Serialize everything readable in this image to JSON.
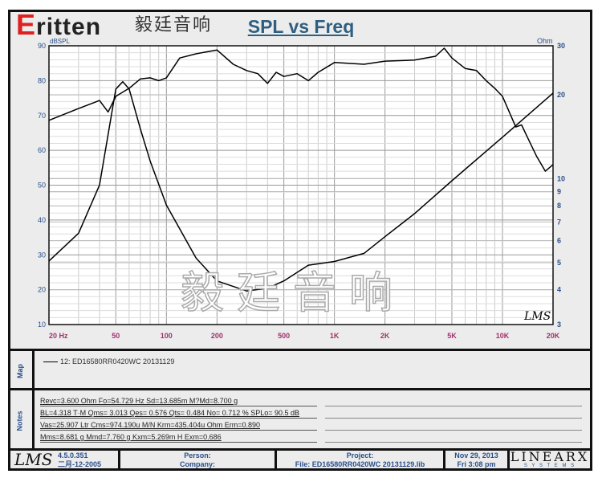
{
  "logo": {
    "text": "ritten",
    "letter": "E",
    "cn": "毅廷音响",
    "color": "#e02020"
  },
  "watermark": "毅廷音响",
  "chart_data": {
    "type": "line",
    "title": "SPL vs Freq",
    "xscale": "log",
    "xlim": [
      20,
      20000
    ],
    "x_tick_labels": [
      "20 Hz",
      "50",
      "100",
      "200",
      "500",
      "1K",
      "2K",
      "5K",
      "10K",
      "20K"
    ],
    "x_tick_values": [
      20,
      50,
      100,
      200,
      500,
      1000,
      2000,
      5000,
      10000,
      20000
    ],
    "ylabel_left": "dBSPL",
    "ylim_left": [
      10,
      90
    ],
    "y_ticks_left": [
      10,
      20,
      30,
      40,
      50,
      60,
      70,
      80,
      90
    ],
    "ylabel_right": "Ohm",
    "yscale_right": "log",
    "ylim_right": [
      3,
      30
    ],
    "y_ticks_right": [
      3,
      4,
      5,
      6,
      7,
      8,
      9,
      10,
      20,
      30
    ],
    "grid": true,
    "series": [
      {
        "axis": "left",
        "x": [
          20,
          30,
          40,
          45,
          50,
          60,
          70,
          80,
          90,
          100,
          120,
          150,
          200,
          250,
          300,
          350,
          400,
          450,
          500,
          600,
          700,
          800,
          1000,
          1500,
          2000,
          3000,
          4000,
          4500,
          5000,
          6000,
          7000,
          8000,
          9000,
          10000,
          12000,
          13000,
          14000,
          16000,
          18000,
          20000
        ],
        "values": [
          68.6,
          72,
          74.3,
          71,
          75.5,
          77.8,
          80.5,
          80.8,
          80,
          80.8,
          86.5,
          87.7,
          88.8,
          84.7,
          82.9,
          82,
          79.2,
          82.4,
          81.2,
          82,
          80,
          82.4,
          85.2,
          84.7,
          85.6,
          85.9,
          87,
          89.3,
          86.5,
          83.5,
          82.9,
          80,
          77.8,
          75.5,
          66.7,
          67.3,
          64,
          58.2,
          54,
          55.9
        ]
      },
      {
        "axis": "right",
        "x": [
          20,
          30,
          40,
          50,
          55,
          60,
          70,
          80,
          100,
          150,
          200,
          300,
          400,
          500,
          700,
          1000,
          1500,
          2000,
          3000,
          5000,
          10000,
          20000
        ],
        "values": [
          5.07,
          6.38,
          9.5,
          21,
          22.3,
          21,
          15.1,
          11.6,
          8.05,
          5.2,
          4.3,
          3.96,
          4.05,
          4.3,
          4.9,
          5.05,
          5.4,
          6.2,
          7.5,
          9.84,
          14.1,
          20.3
        ]
      }
    ],
    "annotation": "LMS"
  },
  "map": {
    "label": "Map",
    "legend": "12: ED16580RR0420WC    20131129"
  },
  "notes": {
    "label": "Notes",
    "lines": [
      "Revc=3.600 Ohm  Fo=54.729 Hz  Sd=13.685m M?Md=8.700 g",
      "BL=4.318 T·M  Qms= 3.013  Qes= 0.576  Qts= 0.484  No= 0.712 %  SPLo= 90.5 dB",
      "Vas=25.907 Ltr  Cms=974.190u M/N  Krm=435.404u Ohm  Erm=0.890",
      "Mms=8.681 g  Mmd=7.760 g  Kxm=5.269m H  Exm=0.686"
    ]
  },
  "footer": {
    "lms": "LMS",
    "version": "4.5.0.351",
    "build_date": "二月-12-2005",
    "person": "Person:",
    "company": "Company:",
    "project": "Project:",
    "file": "File: ED16580RR0420WC  20131129.lib",
    "date": "Nov 29, 2013",
    "time": "Fri  3:08 pm",
    "brand": "LINEARX",
    "brand_sub": "S Y S T E M S"
  }
}
